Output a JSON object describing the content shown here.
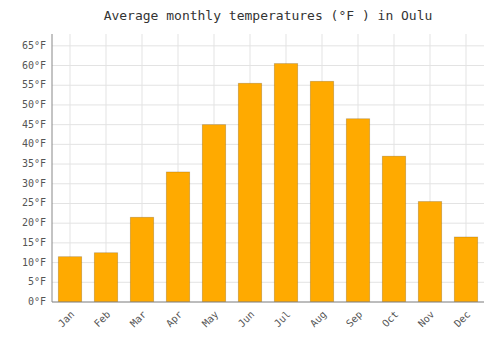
{
  "chart_data": {
    "type": "bar",
    "title": "Average monthly temperatures (°F ) in Oulu",
    "categories": [
      "Jan",
      "Feb",
      "Mar",
      "Apr",
      "May",
      "Jun",
      "Jul",
      "Aug",
      "Sep",
      "Oct",
      "Nov",
      "Dec"
    ],
    "values": [
      11.5,
      12.5,
      21.5,
      33.0,
      45.0,
      55.5,
      60.5,
      56.0,
      46.5,
      37.0,
      25.5,
      16.5
    ],
    "color": "#FFAA00",
    "ylim": [
      0,
      68
    ],
    "yticks": [
      {
        "value": 0,
        "label": "0°F"
      },
      {
        "value": 5,
        "label": "5°F"
      },
      {
        "value": 10,
        "label": "10°F"
      },
      {
        "value": 15,
        "label": "15°F"
      },
      {
        "value": 20,
        "label": "20°F"
      },
      {
        "value": 25,
        "label": "25°F"
      },
      {
        "value": 30,
        "label": "30°F"
      },
      {
        "value": 35,
        "label": "35°F"
      },
      {
        "value": 40,
        "label": "40°F"
      },
      {
        "value": 45,
        "label": "45°F"
      },
      {
        "value": 50,
        "label": "50°F"
      },
      {
        "value": 55,
        "label": "55°F"
      },
      {
        "value": 60,
        "label": "60°F"
      },
      {
        "value": 65,
        "label": "65°F"
      }
    ],
    "grid": true
  }
}
